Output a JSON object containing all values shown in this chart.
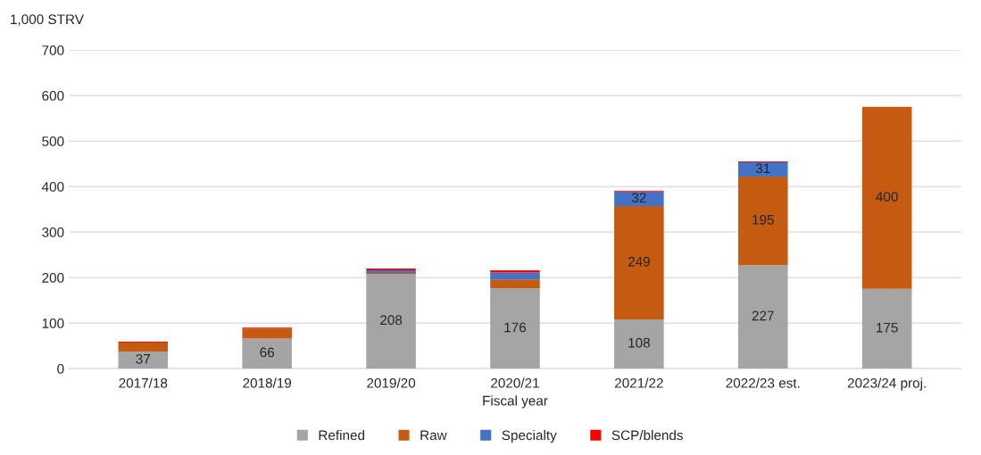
{
  "chart_data": {
    "type": "bar",
    "stacked": true,
    "ylabel": "1,000 STRV",
    "xlabel": "Fiscal year",
    "categories": [
      "2017/18",
      "2018/19",
      "2019/20",
      "2020/21",
      "2021/22",
      "2022/23 est.",
      "2023/24 proj."
    ],
    "series": [
      {
        "name": "Refined",
        "color": "#a5a5a5",
        "values": [
          37,
          66,
          208,
          176,
          108,
          227,
          175
        ],
        "value_labels": [
          "37",
          "66",
          "208",
          "176",
          "108",
          "227",
          "175"
        ]
      },
      {
        "name": "Raw",
        "color": "#c55a11",
        "values": [
          20,
          22,
          2,
          20,
          249,
          195,
          400
        ],
        "value_labels": [
          null,
          null,
          null,
          null,
          "249",
          "195",
          "400"
        ]
      },
      {
        "name": "Specialty",
        "color": "#4472c4",
        "values": [
          0,
          0,
          6,
          15,
          32,
          31,
          0
        ],
        "value_labels": [
          null,
          null,
          null,
          null,
          "32",
          "31",
          null
        ]
      },
      {
        "name": "SCP/blends",
        "color": "#ff0000",
        "values": [
          2,
          2,
          4,
          5,
          2,
          2,
          0
        ],
        "value_labels": [
          null,
          null,
          null,
          null,
          null,
          null,
          null
        ]
      }
    ],
    "ylim": [
      0,
      700
    ],
    "yticks": [
      0,
      100,
      200,
      300,
      400,
      500,
      600,
      700
    ],
    "grid": "y",
    "legend": "bottom"
  }
}
